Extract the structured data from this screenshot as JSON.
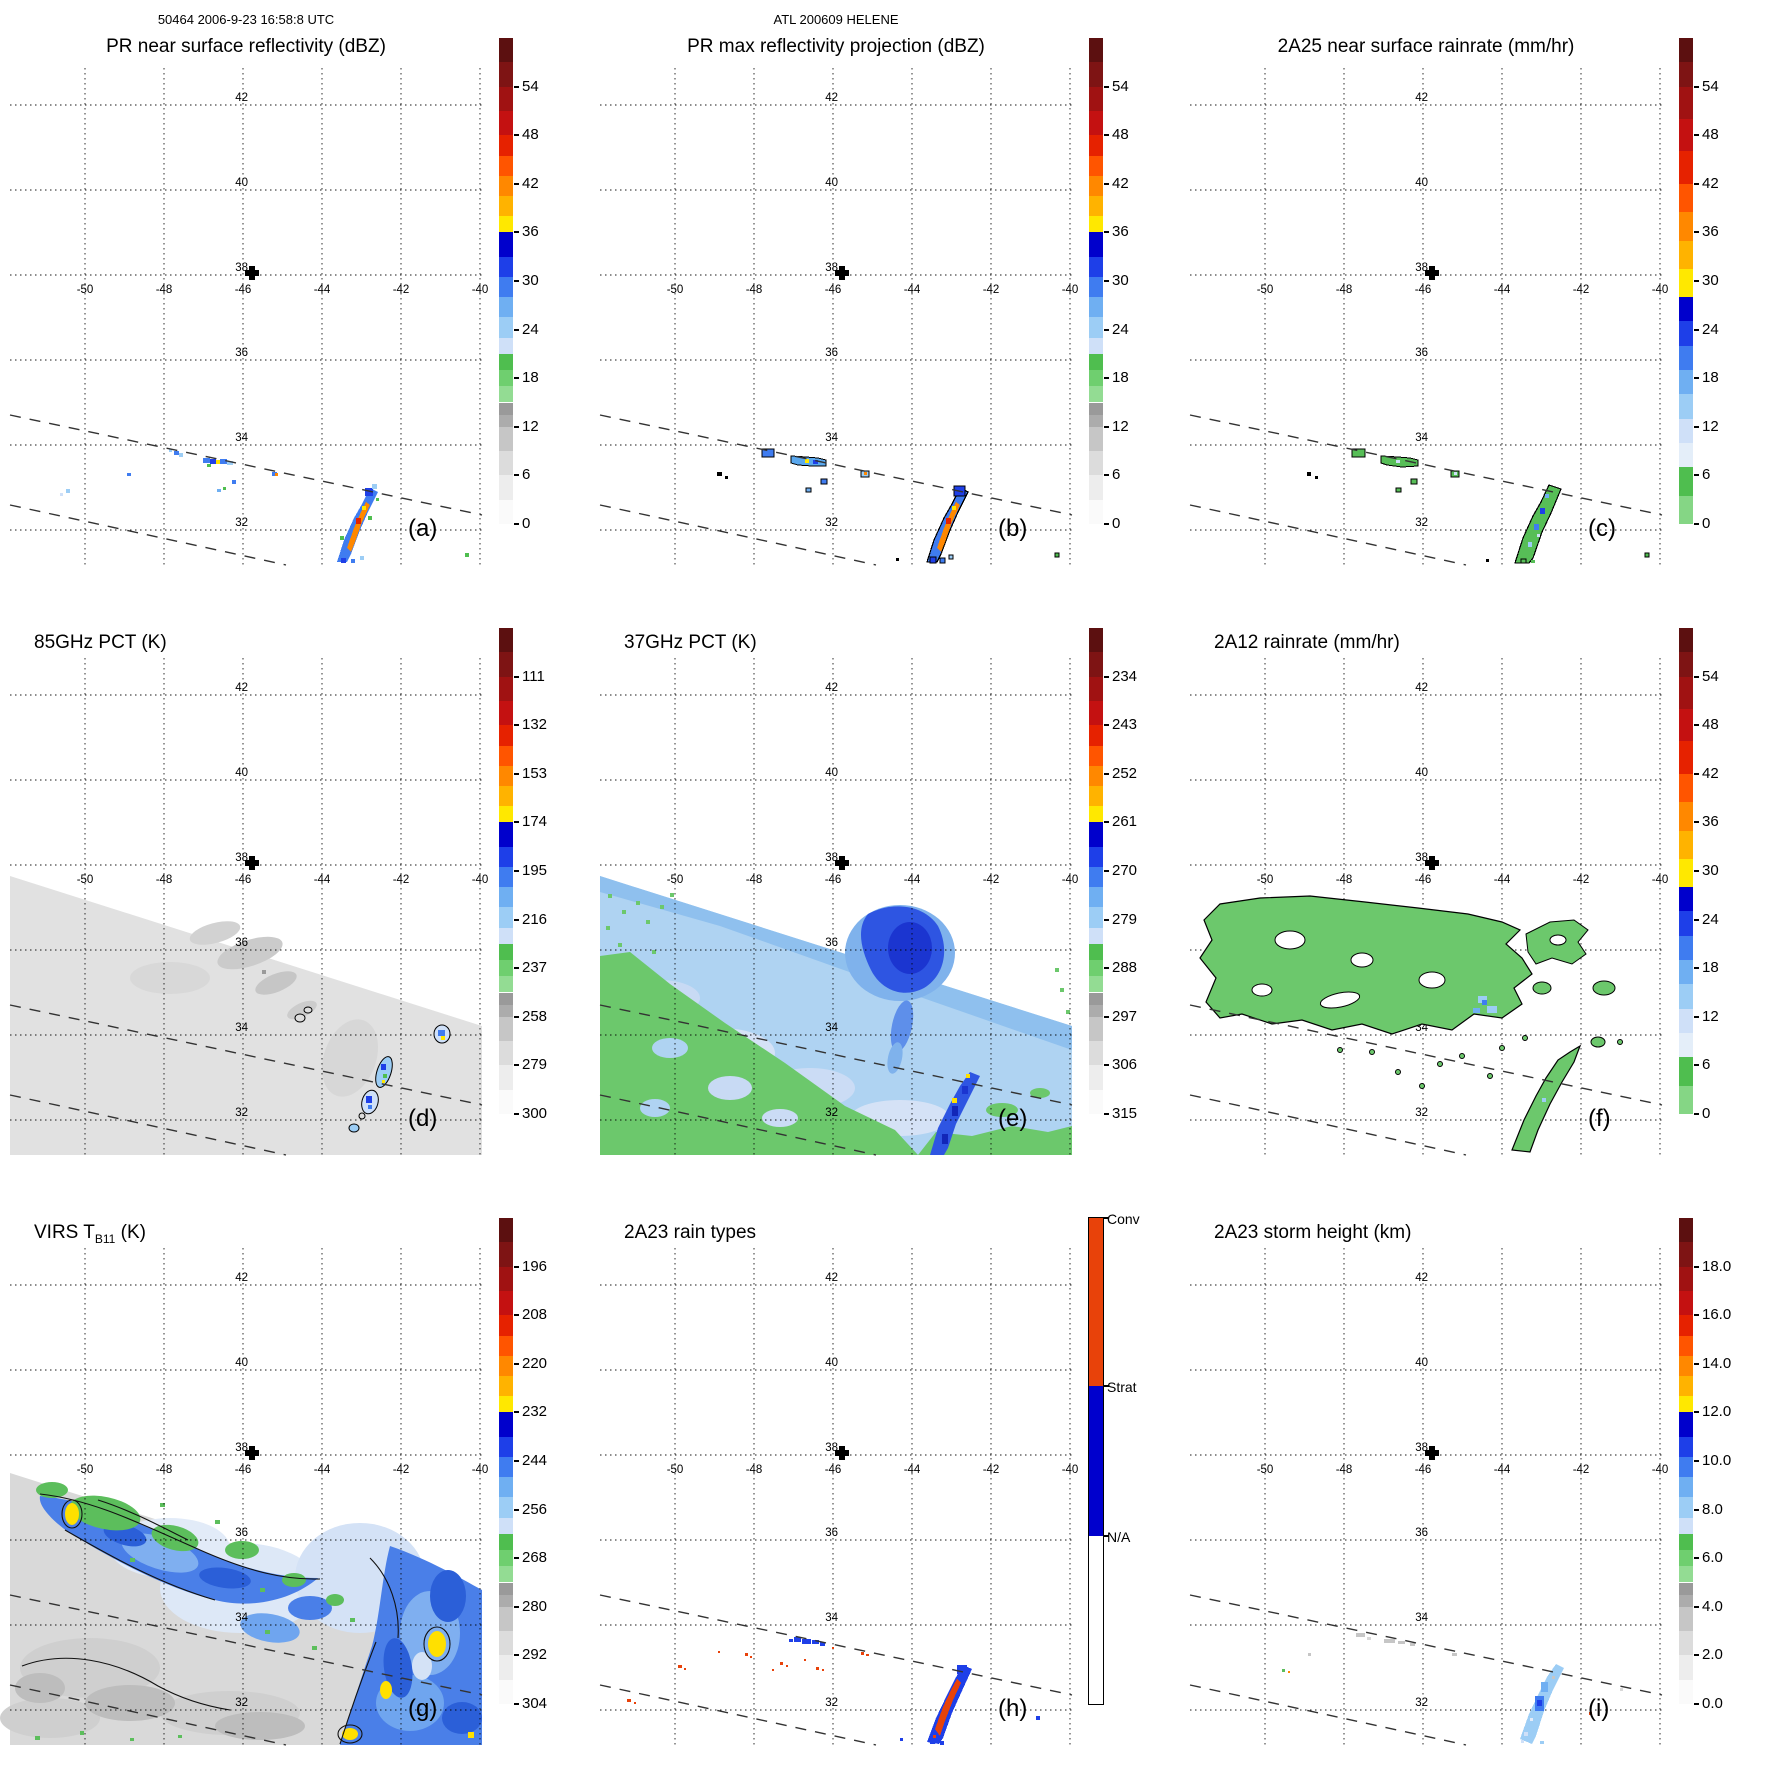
{
  "header": {
    "left": "50464 2006-9-23 16:58:8 UTC",
    "center": "ATL 200609 HELENE"
  },
  "map": {
    "lon_labels": [
      "-50",
      "-48",
      "-46",
      "-44",
      "-42",
      "-40"
    ],
    "lat_labels": [
      "42",
      "40",
      "38",
      "36",
      "34",
      "32"
    ],
    "center_marker": "plus at -46E 38N"
  },
  "panels": [
    {
      "id": "a",
      "letter": "(a)",
      "title": "PR near surface reflectivity (dBZ)",
      "cbar_style": "dbz",
      "cbar_type": "ticks",
      "cbar_labels": [
        "54",
        "48",
        "42",
        "36",
        "30",
        "24",
        "18",
        "12",
        "6",
        "0"
      ]
    },
    {
      "id": "b",
      "letter": "(b)",
      "title": "PR max reflectivity projection (dBZ)",
      "cbar_style": "dbz",
      "cbar_type": "ticks",
      "cbar_labels": [
        "54",
        "48",
        "42",
        "36",
        "30",
        "24",
        "18",
        "12",
        "6",
        "0"
      ]
    },
    {
      "id": "c",
      "letter": "(c)",
      "title": "2A25 near surface rainrate (mm/hr)",
      "cbar_style": "rain",
      "cbar_type": "ticks",
      "cbar_labels": [
        "54",
        "48",
        "42",
        "36",
        "30",
        "24",
        "18",
        "12",
        "6",
        "0"
      ]
    },
    {
      "id": "d",
      "letter": "(d)",
      "title": "85GHz PCT (K)",
      "cbar_style": "dbz",
      "cbar_type": "ticks",
      "cbar_labels": [
        "111",
        "132",
        "153",
        "174",
        "195",
        "216",
        "237",
        "258",
        "279",
        "300"
      ]
    },
    {
      "id": "e",
      "letter": "(e)",
      "title": "37GHz PCT (K)",
      "cbar_style": "dbz",
      "cbar_type": "ticks",
      "cbar_labels": [
        "234",
        "243",
        "252",
        "261",
        "270",
        "279",
        "288",
        "297",
        "306",
        "315"
      ]
    },
    {
      "id": "f",
      "letter": "(f)",
      "title": "2A12 rainrate (mm/hr)",
      "cbar_style": "rain",
      "cbar_type": "ticks",
      "cbar_labels": [
        "54",
        "48",
        "42",
        "36",
        "30",
        "24",
        "18",
        "12",
        "6",
        "0"
      ]
    },
    {
      "id": "g",
      "letter": "(g)",
      "title": "VIRS TB11 (K)",
      "title_pre": "VIRS T",
      "title_sub": "B11",
      "title_post": " (K)",
      "cbar_style": "dbz",
      "cbar_type": "ticks",
      "cbar_labels": [
        "196",
        "208",
        "220",
        "232",
        "244",
        "256",
        "268",
        "280",
        "292",
        "304"
      ]
    },
    {
      "id": "h",
      "letter": "(h)",
      "title": "2A23 rain types",
      "cbar_style": "raintype",
      "cbar_type": "raintype",
      "cbar_labels": [
        "Conv",
        "Strat",
        "N/A"
      ]
    },
    {
      "id": "i",
      "letter": "(i)",
      "title": "2A23 storm height (km)",
      "cbar_style": "dbz",
      "cbar_type": "ticks",
      "cbar_labels": [
        "18.0",
        "16.0",
        "14.0",
        "12.0",
        "10.0",
        "8.0",
        "6.0",
        "4.0",
        "2.0",
        "0.0"
      ]
    }
  ],
  "colorbars": {
    "styles": {
      "dbz": [
        [
          0,
          0.05,
          "#5C1010"
        ],
        [
          0.05,
          0.1,
          "#7E1414"
        ],
        [
          0.1,
          0.15,
          "#A01212"
        ],
        [
          0.15,
          0.2,
          "#C41111"
        ],
        [
          0.2,
          0.242,
          "#E62200"
        ],
        [
          0.242,
          0.283,
          "#FF5500"
        ],
        [
          0.283,
          0.325,
          "#FF8800"
        ],
        [
          0.325,
          0.367,
          "#FFB300"
        ],
        [
          0.367,
          0.4,
          "#FFE800"
        ],
        [
          0.4,
          0.45,
          "#0000CC"
        ],
        [
          0.45,
          0.492,
          "#1E3FE8"
        ],
        [
          0.492,
          0.533,
          "#3F7CF0"
        ],
        [
          0.533,
          0.575,
          "#6FAFF2"
        ],
        [
          0.575,
          0.617,
          "#9CCDF5"
        ],
        [
          0.617,
          0.65,
          "#CFE0F8"
        ],
        [
          0.65,
          0.683,
          "#4FBE4F"
        ],
        [
          0.683,
          0.717,
          "#6FCF6F"
        ],
        [
          0.717,
          0.75,
          "#93DC93"
        ],
        [
          0.75,
          0.775,
          "#9A9A9A"
        ],
        [
          0.775,
          0.8,
          "#ACACAC"
        ],
        [
          0.8,
          0.85,
          "#C6C6C6"
        ],
        [
          0.85,
          0.9,
          "#DCDCDC"
        ],
        [
          0.9,
          0.95,
          "#EDEDED"
        ],
        [
          0.95,
          1.0,
          "#FAFAFA"
        ]
      ],
      "rain": [
        [
          0,
          0.05,
          "#5C1010"
        ],
        [
          0.05,
          0.1,
          "#7E1414"
        ],
        [
          0.1,
          0.167,
          "#A01212"
        ],
        [
          0.167,
          0.233,
          "#C41111"
        ],
        [
          0.233,
          0.3,
          "#E62200"
        ],
        [
          0.3,
          0.358,
          "#FF5500"
        ],
        [
          0.358,
          0.417,
          "#FF8800"
        ],
        [
          0.417,
          0.475,
          "#FFB300"
        ],
        [
          0.475,
          0.533,
          "#FFE800"
        ],
        [
          0.533,
          0.583,
          "#0000CC"
        ],
        [
          0.583,
          0.633,
          "#1E3FE8"
        ],
        [
          0.633,
          0.683,
          "#3F7CF0"
        ],
        [
          0.683,
          0.733,
          "#6FAFF2"
        ],
        [
          0.733,
          0.783,
          "#9CCDF5"
        ],
        [
          0.783,
          0.833,
          "#CFE0F8"
        ],
        [
          0.833,
          0.883,
          "#E4EEF9"
        ],
        [
          0.883,
          0.942,
          "#4FBE4F"
        ],
        [
          0.942,
          1.0,
          "#85D685"
        ]
      ],
      "raintype": [
        [
          0,
          0.345,
          "#E8420A"
        ],
        [
          0.345,
          0.655,
          "#0000CD"
        ],
        [
          0.655,
          1.0,
          "#FFFFFF"
        ]
      ]
    },
    "raintype_labels": [
      {
        "t": "Conv",
        "f": 0
      },
      {
        "t": "Strat",
        "f": 0.345
      },
      {
        "t": "N/A",
        "f": 0.655
      }
    ]
  },
  "chart_data": {
    "figure": "TRMM overpass 9-panel comparison, Hurricane Helene",
    "orbit_header": "50464 2006-9-23 16:58:8 UTC",
    "storm_header": "ATL 200609 HELENE",
    "shared_axes": {
      "lon_ticks": [
        -50,
        -48,
        -46,
        -44,
        -42,
        -40
      ],
      "lat_ticks": [
        42,
        40,
        38,
        36,
        34,
        32
      ],
      "lon_range": [
        -51.9,
        -39.9
      ],
      "lat_range": [
        31.2,
        42.9
      ],
      "grid": "dotted 2-degree graticule",
      "storm_center_marker": {
        "lon": -45.9,
        "lat": 38.0
      },
      "pr_swath_edges": "two dashed diagonal lines crossing lower third of each map"
    },
    "panels": [
      {
        "panel": "a",
        "type": "heatmap",
        "title": "PR near surface reflectivity (dBZ)",
        "colorbar_ticks": [
          54,
          48,
          42,
          36,
          30,
          24,
          18,
          12,
          6,
          0
        ],
        "features": "scattered blue echoes near -47,33.7; convective line with 42-48 dBZ core from -43.6,31.4 to -42.8,33.0"
      },
      {
        "panel": "b",
        "type": "heatmap",
        "title": "PR max reflectivity projection (dBZ)",
        "colorbar_ticks": [
          54,
          48,
          42,
          36,
          30,
          24,
          18,
          12,
          6,
          0
        ],
        "features": "same cells as (a), outlined, slightly larger coverage"
      },
      {
        "panel": "c",
        "type": "heatmap",
        "title": "2A25 near surface rainrate (mm/hr)",
        "colorbar_ticks": [
          54,
          48,
          42,
          36,
          30,
          24,
          18,
          12,
          6,
          0
        ],
        "features": "green 1-6 mm/hr outlined cells; 18-28 mm/hr blue pixels inside convective line"
      },
      {
        "panel": "d",
        "type": "heatmap",
        "title": "85GHz PCT (K)",
        "colorbar_ticks": [
          111,
          132,
          153,
          174,
          195,
          216,
          237,
          258,
          279,
          300
        ],
        "features": "TMI swath mostly 280-300 K gray; depressed PCT cells (195-240 K) along convective line and at -41.2,34"
      },
      {
        "panel": "e",
        "type": "heatmap",
        "title": "37GHz PCT (K)",
        "colorbar_ticks": [
          234,
          243,
          252,
          261,
          270,
          279,
          288,
          297,
          306,
          315
        ],
        "features": "276-282 K light blue field, 288-297 K green low-emission ocean lower left and bottom, 266-272 K dark blue core near -44,36, warm line echo with 261 K pixels"
      },
      {
        "panel": "f",
        "type": "heatmap",
        "title": "2A12 rainrate (mm/hr)",
        "colorbar_ticks": [
          54,
          48,
          42,
          36,
          30,
          24,
          18,
          12,
          6,
          0
        ],
        "features": "broad 1-6 mm/hr green shield lat 34.5-37.5 with embedded 12-18 mm/hr pixels; diagonal rainband -43.8,31.2 to -41.9,33.7"
      },
      {
        "panel": "g",
        "type": "heatmap",
        "title": "VIRS TB11 (K)",
        "colorbar_ticks": [
          196,
          208,
          220,
          232,
          244,
          256,
          268,
          280,
          292,
          304
        ],
        "features": "cold cloud shield 244-256 K blue over center and east, 268 K green patches northwest, 232 K yellow overshooting tops, 280-300 K gray clear air southwest"
      },
      {
        "panel": "h",
        "type": "categorical-map",
        "title": "2A23 rain types",
        "categories": [
          "Conv",
          "Strat",
          "N/A"
        ],
        "category_colors": [
          "#E8420A",
          "#0000CD",
          "#FFFFFF"
        ],
        "features": "convective (red) pixels along line and scattered cells; stratiform (blue) cluster near -46.6,33.5 and in rainband"
      },
      {
        "panel": "i",
        "type": "heatmap",
        "title": "2A23 storm height (km)",
        "colorbar_ticks": [
          18.0,
          16.0,
          14.0,
          12.0,
          10.0,
          8.0,
          6.0,
          4.0,
          2.0,
          0.0
        ],
        "features": "2-4 km gray echo tops in weak cells; 8-12 km blue tops in convective line near -43,32.3"
      }
    ]
  }
}
